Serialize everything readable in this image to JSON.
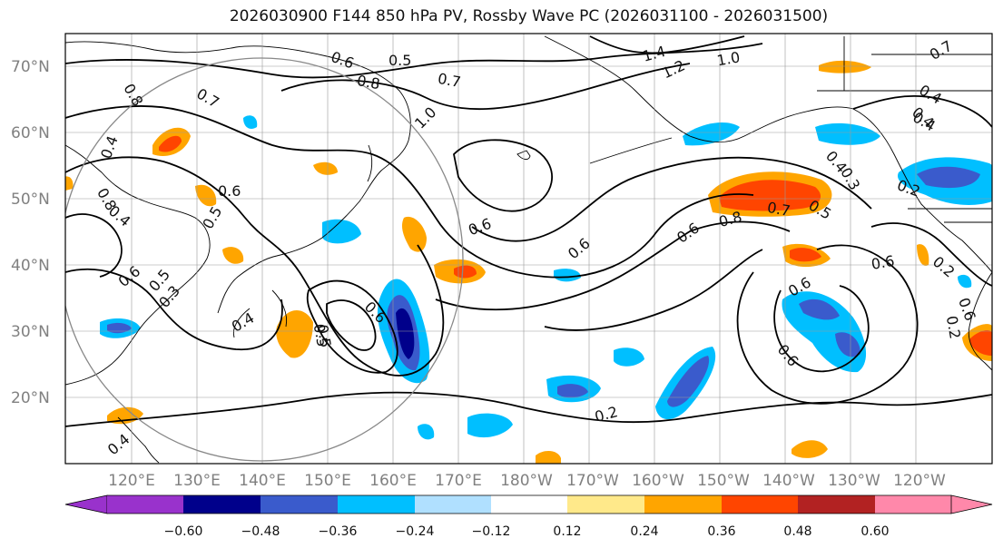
{
  "title": "2026030900 F144 850 hPa PV, Rossby Wave PC (2026031100 - 2026031500)",
  "axes": {
    "lat_labels": [
      "70°N",
      "60°N",
      "50°N",
      "40°N",
      "30°N",
      "20°N"
    ],
    "lon_labels": [
      "120°E",
      "130°E",
      "140°E",
      "150°E",
      "160°E",
      "170°E",
      "180°W",
      "170°W",
      "160°W",
      "150°W",
      "140°W",
      "130°W",
      "120°W"
    ]
  },
  "colorbar": {
    "colors": [
      "#9932cc",
      "#00008b",
      "#3a5bcc",
      "#00bfff",
      "#b0e0ff",
      "#ffffff",
      "#ffe98a",
      "#ffa500",
      "#ff4500",
      "#b22222",
      "#ff88aa"
    ],
    "tick_labels": [
      "−0.60",
      "−0.48",
      "−0.36",
      "−0.24",
      "−0.12",
      "0.12",
      "0.24",
      "0.36",
      "0.48",
      "0.60"
    ]
  },
  "contour_labels": [
    "0.6",
    "0.5",
    "0.8",
    "0.7",
    "1.4",
    "1.2",
    "1.0",
    "0.8",
    "0.4",
    "0.7",
    "0.4",
    "0.8",
    "0.6",
    "1.0",
    "0.5",
    "0.6",
    "0.6",
    "0.8",
    "0.7",
    "0.5",
    "0.6",
    "0.6",
    "0.6",
    "0.4",
    "0.6",
    "0.5",
    "0.2",
    "0.6",
    "0.4",
    "0.2",
    "0.3",
    "0.4",
    "0.3",
    "0.5",
    "0.6",
    "0.2",
    "0.4",
    "0.2",
    "0.4",
    "0.6",
    "0.4",
    "0.5",
    "0.7"
  ],
  "map_data": {
    "projection": "equirectangular",
    "lon_range": [
      110,
      252
    ],
    "lat_range": [
      10,
      75
    ],
    "anomaly_regions": [
      {
        "name": "blue-kuroshio",
        "values": [
          -0.6,
          -0.48,
          -0.36,
          -0.24
        ]
      },
      {
        "name": "red-gulf-alaska",
        "values": [
          0.24,
          0.36,
          0.48
        ]
      },
      {
        "name": "blue-nw-canada",
        "values": [
          -0.24,
          -0.36
        ]
      }
    ]
  }
}
